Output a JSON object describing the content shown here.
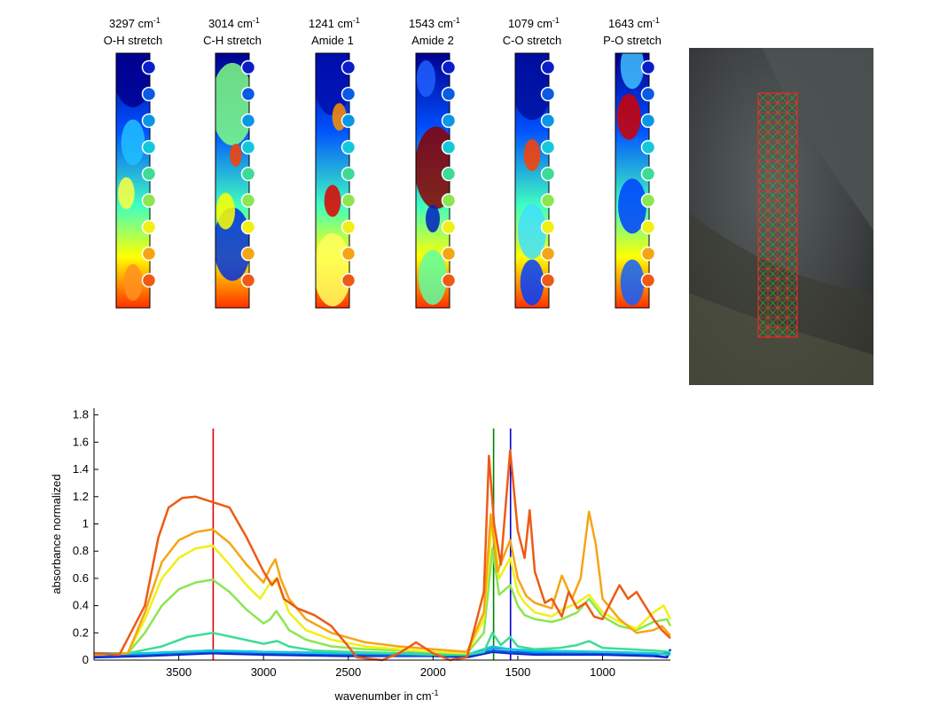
{
  "colors": {
    "ref_red": "#e00000",
    "ref_green": "#008000",
    "ref_blue": "#0000d0",
    "grid_red": "#ff2020",
    "grid_green": "#22cc22"
  },
  "heatmaps": [
    {
      "wavenumber": "3297 cm",
      "exp": "-1",
      "band": "O-H stretch"
    },
    {
      "wavenumber": "3014 cm",
      "exp": "-1",
      "band": "C-H stretch"
    },
    {
      "wavenumber": "1241 cm",
      "exp": "-1",
      "band": "Amide 1"
    },
    {
      "wavenumber": "1543 cm",
      "exp": "-1",
      "band": "Amide 2"
    },
    {
      "wavenumber": "1079 cm",
      "exp": "-1",
      "band": "C-O stretch"
    },
    {
      "wavenumber": "1643 cm",
      "exp": "-1",
      "band": "P-O stretch"
    }
  ],
  "marker_colors": [
    "#0a1ec8",
    "#0a5ae6",
    "#0a96e6",
    "#14c8dc",
    "#3cdc96",
    "#8ce650",
    "#f0f014",
    "#f5a514",
    "#ee5a14"
  ],
  "chart_data": {
    "type": "line",
    "xlabel": "wavenumber in cm",
    "xlabel_sup": "-1",
    "ylabel": "absorbance normalized",
    "xlim": [
      4000,
      600
    ],
    "ylim": [
      0,
      1.85
    ],
    "x_reversed": true,
    "xticks": [
      3500,
      3000,
      2500,
      2000,
      1500,
      1000
    ],
    "yticks": [
      0,
      0.2,
      0.4,
      0.6,
      0.8,
      1,
      1.2,
      1.4,
      1.6,
      1.8
    ],
    "grid": false,
    "reference_lines": [
      {
        "x": 3297,
        "color": "#e00000",
        "y_top": 1.7
      },
      {
        "x": 1643,
        "color": "#008000",
        "y_top": 1.7
      },
      {
        "x": 1543,
        "color": "#0000d0",
        "y_top": 1.7
      }
    ],
    "series": [
      {
        "color": "#0a1ec8",
        "points": [
          [
            4000,
            0.02
          ],
          [
            3700,
            0.03
          ],
          [
            3300,
            0.05
          ],
          [
            3000,
            0.04
          ],
          [
            2500,
            0.03
          ],
          [
            2000,
            0.03
          ],
          [
            1800,
            0.02
          ],
          [
            1650,
            0.06
          ],
          [
            1550,
            0.05
          ],
          [
            1400,
            0.04
          ],
          [
            1000,
            0.04
          ],
          [
            700,
            0.03
          ],
          [
            620,
            0.02
          ],
          [
            600,
            0.08
          ]
        ]
      },
      {
        "color": "#0a5ae6",
        "points": [
          [
            4000,
            0.03
          ],
          [
            3700,
            0.04
          ],
          [
            3300,
            0.06
          ],
          [
            3000,
            0.05
          ],
          [
            2500,
            0.04
          ],
          [
            2000,
            0.03
          ],
          [
            1800,
            0.03
          ],
          [
            1650,
            0.07
          ],
          [
            1550,
            0.06
          ],
          [
            1400,
            0.05
          ],
          [
            1000,
            0.05
          ],
          [
            700,
            0.04
          ],
          [
            600,
            0.05
          ]
        ]
      },
      {
        "color": "#0a96e6",
        "points": [
          [
            4000,
            0.04
          ],
          [
            3700,
            0.05
          ],
          [
            3300,
            0.07
          ],
          [
            3000,
            0.06
          ],
          [
            2500,
            0.05
          ],
          [
            2000,
            0.04
          ],
          [
            1800,
            0.04
          ],
          [
            1650,
            0.09
          ],
          [
            1550,
            0.08
          ],
          [
            1400,
            0.06
          ],
          [
            1000,
            0.06
          ],
          [
            700,
            0.05
          ],
          [
            600,
            0.04
          ]
        ]
      },
      {
        "color": "#14c8dc",
        "points": [
          [
            4000,
            0.05
          ],
          [
            3700,
            0.05
          ],
          [
            3300,
            0.07
          ],
          [
            3000,
            0.06
          ],
          [
            2500,
            0.05
          ],
          [
            2000,
            0.05
          ],
          [
            1800,
            0.04
          ],
          [
            1650,
            0.1
          ],
          [
            1550,
            0.08
          ],
          [
            1400,
            0.07
          ],
          [
            1000,
            0.06
          ],
          [
            700,
            0.05
          ],
          [
            600,
            0.04
          ]
        ]
      },
      {
        "color": "#3cdc96",
        "points": [
          [
            4000,
            0.04
          ],
          [
            3800,
            0.05
          ],
          [
            3600,
            0.1
          ],
          [
            3450,
            0.17
          ],
          [
            3300,
            0.2
          ],
          [
            3150,
            0.16
          ],
          [
            3000,
            0.12
          ],
          [
            2920,
            0.14
          ],
          [
            2850,
            0.1
          ],
          [
            2700,
            0.07
          ],
          [
            2500,
            0.06
          ],
          [
            2200,
            0.05
          ],
          [
            2000,
            0.04
          ],
          [
            1800,
            0.04
          ],
          [
            1700,
            0.06
          ],
          [
            1650,
            0.2
          ],
          [
            1600,
            0.11
          ],
          [
            1545,
            0.17
          ],
          [
            1500,
            0.1
          ],
          [
            1400,
            0.08
          ],
          [
            1250,
            0.09
          ],
          [
            1150,
            0.11
          ],
          [
            1080,
            0.14
          ],
          [
            1000,
            0.09
          ],
          [
            850,
            0.08
          ],
          [
            700,
            0.07
          ],
          [
            600,
            0.06
          ]
        ]
      },
      {
        "color": "#8ce650",
        "points": [
          [
            4000,
            0.04
          ],
          [
            3800,
            0.05
          ],
          [
            3700,
            0.2
          ],
          [
            3600,
            0.4
          ],
          [
            3500,
            0.52
          ],
          [
            3400,
            0.57
          ],
          [
            3300,
            0.59
          ],
          [
            3200,
            0.5
          ],
          [
            3100,
            0.37
          ],
          [
            3000,
            0.27
          ],
          [
            2960,
            0.3
          ],
          [
            2925,
            0.36
          ],
          [
            2880,
            0.28
          ],
          [
            2850,
            0.22
          ],
          [
            2750,
            0.15
          ],
          [
            2600,
            0.1
          ],
          [
            2400,
            0.08
          ],
          [
            2200,
            0.07
          ],
          [
            2000,
            0.06
          ],
          [
            1800,
            0.05
          ],
          [
            1700,
            0.2
          ],
          [
            1650,
            0.82
          ],
          [
            1610,
            0.48
          ],
          [
            1545,
            0.55
          ],
          [
            1500,
            0.4
          ],
          [
            1460,
            0.33
          ],
          [
            1400,
            0.3
          ],
          [
            1300,
            0.28
          ],
          [
            1240,
            0.3
          ],
          [
            1150,
            0.35
          ],
          [
            1080,
            0.45
          ],
          [
            1000,
            0.32
          ],
          [
            900,
            0.25
          ],
          [
            800,
            0.22
          ],
          [
            700,
            0.28
          ],
          [
            620,
            0.3
          ],
          [
            600,
            0.25
          ]
        ]
      },
      {
        "color": "#f0f014",
        "points": [
          [
            4000,
            0.04
          ],
          [
            3800,
            0.05
          ],
          [
            3700,
            0.3
          ],
          [
            3600,
            0.6
          ],
          [
            3500,
            0.75
          ],
          [
            3400,
            0.82
          ],
          [
            3300,
            0.84
          ],
          [
            3200,
            0.7
          ],
          [
            3100,
            0.55
          ],
          [
            3020,
            0.45
          ],
          [
            2970,
            0.55
          ],
          [
            2925,
            0.6
          ],
          [
            2880,
            0.45
          ],
          [
            2850,
            0.35
          ],
          [
            2750,
            0.22
          ],
          [
            2600,
            0.15
          ],
          [
            2400,
            0.1
          ],
          [
            2200,
            0.08
          ],
          [
            2000,
            0.06
          ],
          [
            1800,
            0.05
          ],
          [
            1700,
            0.3
          ],
          [
            1650,
            1.05
          ],
          [
            1610,
            0.6
          ],
          [
            1545,
            0.75
          ],
          [
            1500,
            0.5
          ],
          [
            1460,
            0.42
          ],
          [
            1400,
            0.35
          ],
          [
            1300,
            0.32
          ],
          [
            1240,
            0.37
          ],
          [
            1150,
            0.42
          ],
          [
            1080,
            0.48
          ],
          [
            1000,
            0.35
          ],
          [
            900,
            0.28
          ],
          [
            800,
            0.23
          ],
          [
            700,
            0.35
          ],
          [
            640,
            0.4
          ],
          [
            600,
            0.3
          ]
        ]
      },
      {
        "color": "#f5a514",
        "points": [
          [
            4000,
            0.04
          ],
          [
            3800,
            0.05
          ],
          [
            3700,
            0.35
          ],
          [
            3600,
            0.72
          ],
          [
            3500,
            0.88
          ],
          [
            3400,
            0.94
          ],
          [
            3300,
            0.96
          ],
          [
            3200,
            0.86
          ],
          [
            3100,
            0.7
          ],
          [
            3000,
            0.57
          ],
          [
            2960,
            0.68
          ],
          [
            2930,
            0.74
          ],
          [
            2900,
            0.6
          ],
          [
            2850,
            0.45
          ],
          [
            2750,
            0.3
          ],
          [
            2600,
            0.2
          ],
          [
            2400,
            0.13
          ],
          [
            2200,
            0.1
          ],
          [
            2000,
            0.08
          ],
          [
            1800,
            0.06
          ],
          [
            1700,
            0.35
          ],
          [
            1660,
            1.07
          ],
          [
            1620,
            0.65
          ],
          [
            1545,
            0.88
          ],
          [
            1500,
            0.6
          ],
          [
            1450,
            0.47
          ],
          [
            1400,
            0.42
          ],
          [
            1300,
            0.38
          ],
          [
            1240,
            0.62
          ],
          [
            1180,
            0.45
          ],
          [
            1130,
            0.6
          ],
          [
            1080,
            1.09
          ],
          [
            1040,
            0.85
          ],
          [
            1000,
            0.45
          ],
          [
            900,
            0.3
          ],
          [
            800,
            0.2
          ],
          [
            700,
            0.22
          ],
          [
            650,
            0.25
          ],
          [
            600,
            0.18
          ]
        ]
      },
      {
        "color": "#ee5a14",
        "points": [
          [
            4000,
            0.05
          ],
          [
            3850,
            0.04
          ],
          [
            3700,
            0.4
          ],
          [
            3620,
            0.9
          ],
          [
            3560,
            1.12
          ],
          [
            3480,
            1.19
          ],
          [
            3400,
            1.2
          ],
          [
            3300,
            1.16
          ],
          [
            3200,
            1.12
          ],
          [
            3100,
            0.9
          ],
          [
            3000,
            0.65
          ],
          [
            2950,
            0.55
          ],
          [
            2920,
            0.6
          ],
          [
            2880,
            0.45
          ],
          [
            2800,
            0.38
          ],
          [
            2700,
            0.33
          ],
          [
            2600,
            0.25
          ],
          [
            2500,
            0.1
          ],
          [
            2450,
            0.02
          ],
          [
            2300,
            0.0
          ],
          [
            2200,
            0.05
          ],
          [
            2100,
            0.13
          ],
          [
            2000,
            0.05
          ],
          [
            1900,
            0.0
          ],
          [
            1800,
            0.02
          ],
          [
            1700,
            0.5
          ],
          [
            1670,
            1.5
          ],
          [
            1640,
            1.0
          ],
          [
            1600,
            0.7
          ],
          [
            1545,
            1.54
          ],
          [
            1500,
            0.95
          ],
          [
            1460,
            0.75
          ],
          [
            1430,
            1.1
          ],
          [
            1400,
            0.65
          ],
          [
            1340,
            0.42
          ],
          [
            1300,
            0.45
          ],
          [
            1240,
            0.32
          ],
          [
            1200,
            0.5
          ],
          [
            1150,
            0.38
          ],
          [
            1100,
            0.42
          ],
          [
            1050,
            0.32
          ],
          [
            1000,
            0.3
          ],
          [
            950,
            0.43
          ],
          [
            900,
            0.55
          ],
          [
            850,
            0.45
          ],
          [
            800,
            0.5
          ],
          [
            700,
            0.3
          ],
          [
            650,
            0.22
          ],
          [
            600,
            0.16
          ]
        ]
      }
    ]
  }
}
